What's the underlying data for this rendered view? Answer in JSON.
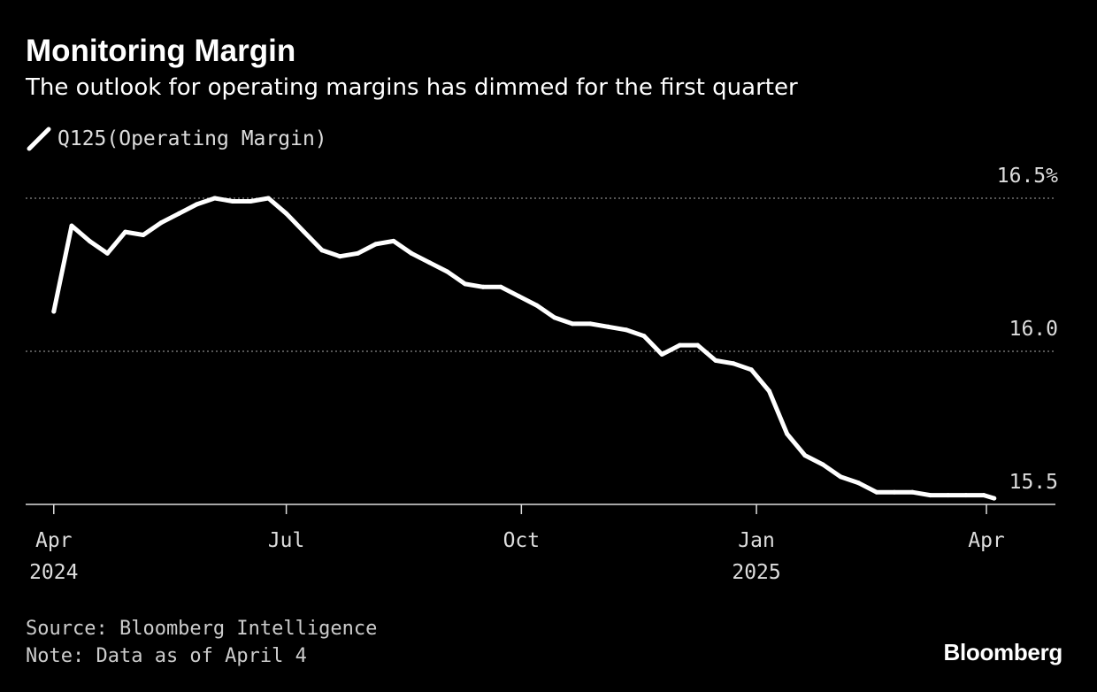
{
  "header": {
    "title": "Monitoring Margin",
    "subtitle": "The outlook for operating margins has dimmed for the first quarter"
  },
  "legend": {
    "label": "Q125(Operating Margin)"
  },
  "footer": {
    "source": "Source: Bloomberg Intelligence",
    "note": "Note: Data as of April 4",
    "brand": "Bloomberg"
  },
  "colors": {
    "background": "#000000",
    "line": "#ffffff",
    "grid": "#888888"
  },
  "chart_data": {
    "type": "line",
    "title": "Monitoring Margin",
    "subtitle": "The outlook for operating margins has dimmed for the first quarter",
    "series": [
      {
        "name": "Q125(Operating Margin)",
        "x": [
          "2024-04-01",
          "2024-04-08",
          "2024-04-15",
          "2024-04-22",
          "2024-04-29",
          "2024-05-06",
          "2024-05-13",
          "2024-05-20",
          "2024-05-27",
          "2024-06-03",
          "2024-06-10",
          "2024-06-17",
          "2024-06-24",
          "2024-07-01",
          "2024-07-08",
          "2024-07-15",
          "2024-07-22",
          "2024-07-29",
          "2024-08-05",
          "2024-08-12",
          "2024-08-19",
          "2024-08-26",
          "2024-09-02",
          "2024-09-09",
          "2024-09-16",
          "2024-09-23",
          "2024-09-30",
          "2024-10-07",
          "2024-10-14",
          "2024-10-21",
          "2024-10-28",
          "2024-11-04",
          "2024-11-11",
          "2024-11-18",
          "2024-11-25",
          "2024-12-02",
          "2024-12-09",
          "2024-12-16",
          "2024-12-23",
          "2024-12-30",
          "2025-01-06",
          "2025-01-13",
          "2025-01-20",
          "2025-01-27",
          "2025-02-03",
          "2025-02-10",
          "2025-02-17",
          "2025-02-24",
          "2025-03-03",
          "2025-03-10",
          "2025-03-17",
          "2025-03-24",
          "2025-03-31",
          "2025-04-04"
        ],
        "values": [
          16.13,
          16.41,
          16.36,
          16.32,
          16.39,
          16.38,
          16.42,
          16.45,
          16.48,
          16.5,
          16.49,
          16.49,
          16.5,
          16.45,
          16.39,
          16.33,
          16.31,
          16.32,
          16.35,
          16.36,
          16.32,
          16.29,
          16.26,
          16.22,
          16.21,
          16.21,
          16.18,
          16.15,
          16.11,
          16.09,
          16.09,
          16.08,
          16.07,
          16.05,
          15.99,
          16.02,
          16.02,
          15.97,
          15.96,
          15.94,
          15.87,
          15.73,
          15.66,
          15.63,
          15.59,
          15.57,
          15.54,
          15.54,
          15.54,
          15.53,
          15.53,
          15.53,
          15.53,
          15.52
        ]
      }
    ],
    "x_ticks": [
      {
        "date": "2024-04-01",
        "label": "Apr",
        "year": "2024"
      },
      {
        "date": "2024-07-01",
        "label": "Jul",
        "year": ""
      },
      {
        "date": "2024-10-01",
        "label": "Oct",
        "year": ""
      },
      {
        "date": "2025-01-01",
        "label": "Jan",
        "year": "2025"
      },
      {
        "date": "2025-04-01",
        "label": "Apr",
        "year": ""
      }
    ],
    "y_ticks": [
      {
        "value": 16.5,
        "label": "16.5%"
      },
      {
        "value": 16.0,
        "label": "16.0"
      },
      {
        "value": 15.5,
        "label": "15.5"
      }
    ],
    "ylim": [
      15.5,
      16.5
    ],
    "xlim": [
      "2024-03-21",
      "2025-04-28"
    ],
    "grid": true,
    "y_axis_position": "right",
    "legend_position": "top-left"
  }
}
